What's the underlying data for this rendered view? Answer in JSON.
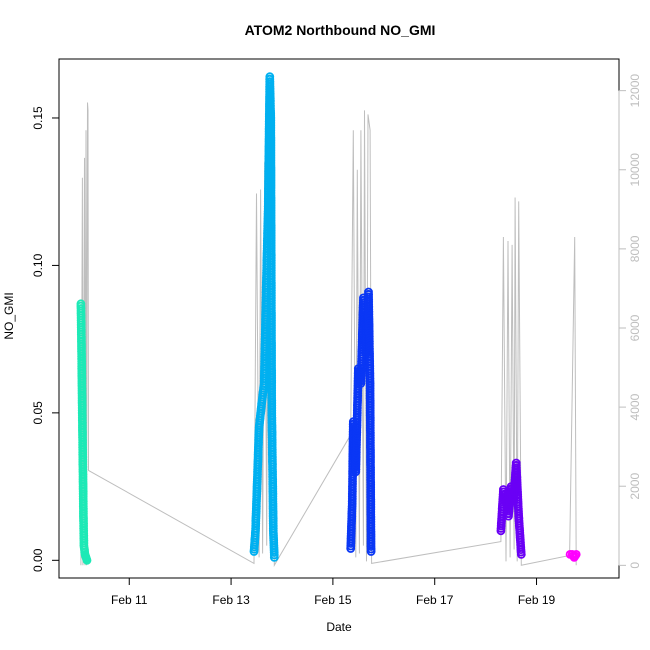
{
  "chart_data": {
    "type": "scatter",
    "title": "ATOM2 Northbound NO_GMI",
    "xlabel": "Date",
    "ylabel": "NO_GMI",
    "x_unit": "date (February)",
    "xlim": [
      9.62,
      20.62
    ],
    "ylim": [
      -0.006,
      0.17
    ],
    "x_ticks": [
      {
        "value": 11,
        "label": "Feb 11"
      },
      {
        "value": 13,
        "label": "Feb 13"
      },
      {
        "value": 15,
        "label": "Feb 15"
      },
      {
        "value": 17,
        "label": "Feb 17"
      },
      {
        "value": 19,
        "label": "Feb 19"
      }
    ],
    "y_ticks": [
      {
        "value": 0.0,
        "label": "0.00"
      },
      {
        "value": 0.05,
        "label": "0.05"
      },
      {
        "value": 0.1,
        "label": "0.10"
      },
      {
        "value": 0.15,
        "label": "0.15"
      }
    ],
    "y2_axis": {
      "color": "#bebebe",
      "ylim": [
        -320,
        12800
      ],
      "ticks": [
        {
          "value": 0,
          "label": "0"
        },
        {
          "value": 2000,
          "label": "2000"
        },
        {
          "value": 4000,
          "label": "4000"
        },
        {
          "value": 6000,
          "label": "6000"
        },
        {
          "value": 8000,
          "label": "8000"
        },
        {
          "value": 10000,
          "label": "10000"
        },
        {
          "value": 12000,
          "label": "12000"
        }
      ]
    },
    "grid": false,
    "legend": "none",
    "altitude_line_color": "#bebebe",
    "altitude_line": [
      [
        10.05,
        0
      ],
      [
        10.08,
        9800
      ],
      [
        10.09,
        0
      ],
      [
        10.12,
        10300
      ],
      [
        10.13,
        0
      ],
      [
        10.15,
        11000
      ],
      [
        10.16,
        0
      ],
      [
        10.18,
        11700
      ],
      [
        10.19,
        11500
      ],
      [
        10.2,
        2400
      ],
      [
        13.45,
        50
      ],
      [
        13.5,
        9400
      ],
      [
        13.55,
        200
      ],
      [
        13.58,
        9500
      ],
      [
        13.62,
        300
      ],
      [
        13.66,
        10200
      ],
      [
        13.7,
        500
      ],
      [
        13.73,
        10300
      ],
      [
        13.78,
        200
      ],
      [
        13.82,
        11000
      ],
      [
        13.85,
        0
      ],
      [
        15.35,
        3300
      ],
      [
        15.4,
        11000
      ],
      [
        15.45,
        200
      ],
      [
        15.48,
        10000
      ],
      [
        15.52,
        300
      ],
      [
        15.55,
        11000
      ],
      [
        15.6,
        500
      ],
      [
        15.62,
        11500
      ],
      [
        15.66,
        100
      ],
      [
        15.69,
        11400
      ],
      [
        15.73,
        11000
      ],
      [
        15.76,
        50
      ],
      [
        18.3,
        600
      ],
      [
        18.35,
        8300
      ],
      [
        18.4,
        100
      ],
      [
        18.44,
        8200
      ],
      [
        18.48,
        200
      ],
      [
        18.52,
        8100
      ],
      [
        18.56,
        400
      ],
      [
        18.58,
        9300
      ],
      [
        18.62,
        100
      ],
      [
        18.65,
        9200
      ],
      [
        18.7,
        0
      ],
      [
        19.65,
        250
      ],
      [
        19.75,
        8300
      ],
      [
        19.78,
        0
      ]
    ],
    "series": [
      {
        "name": "",
        "color": "#1de9b6",
        "points": [
          [
            10.05,
            0.087
          ],
          [
            10.06,
            0.075
          ],
          [
            10.07,
            0.06
          ],
          [
            10.08,
            0.045
          ],
          [
            10.09,
            0.03
          ],
          [
            10.1,
            0.015
          ],
          [
            10.11,
            0.005
          ],
          [
            10.13,
            0.002
          ],
          [
            10.15,
            0.001
          ],
          [
            10.17,
            0.0
          ]
        ]
      },
      {
        "name": "",
        "color": "#00b0f0",
        "points": [
          [
            13.45,
            0.003
          ],
          [
            13.48,
            0.01
          ],
          [
            13.5,
            0.02
          ],
          [
            13.55,
            0.045
          ],
          [
            13.6,
            0.053
          ],
          [
            13.65,
            0.06
          ],
          [
            13.7,
            0.1
          ],
          [
            13.73,
            0.12
          ],
          [
            13.76,
            0.164
          ],
          [
            13.78,
            0.15
          ],
          [
            13.8,
            0.05
          ],
          [
            13.83,
            0.01
          ],
          [
            13.85,
            0.001
          ]
        ]
      },
      {
        "name": "",
        "color": "#0a37f5",
        "points": [
          [
            15.35,
            0.004
          ],
          [
            15.38,
            0.02
          ],
          [
            15.4,
            0.047
          ],
          [
            15.45,
            0.03
          ],
          [
            15.5,
            0.065
          ],
          [
            15.55,
            0.06
          ],
          [
            15.6,
            0.089
          ],
          [
            15.65,
            0.07
          ],
          [
            15.7,
            0.091
          ],
          [
            15.73,
            0.06
          ],
          [
            15.75,
            0.003
          ]
        ]
      },
      {
        "name": "",
        "color": "#6a00f5",
        "points": [
          [
            18.3,
            0.01
          ],
          [
            18.35,
            0.024
          ],
          [
            18.4,
            0.02
          ],
          [
            18.45,
            0.015
          ],
          [
            18.5,
            0.025
          ],
          [
            18.55,
            0.02
          ],
          [
            18.6,
            0.033
          ],
          [
            18.65,
            0.015
          ],
          [
            18.7,
            0.002
          ]
        ]
      },
      {
        "name": "",
        "color": "#ff00ff",
        "points": [
          [
            19.66,
            0.002
          ],
          [
            19.7,
            0.002
          ],
          [
            19.74,
            0.001
          ],
          [
            19.78,
            0.002
          ]
        ]
      }
    ]
  }
}
